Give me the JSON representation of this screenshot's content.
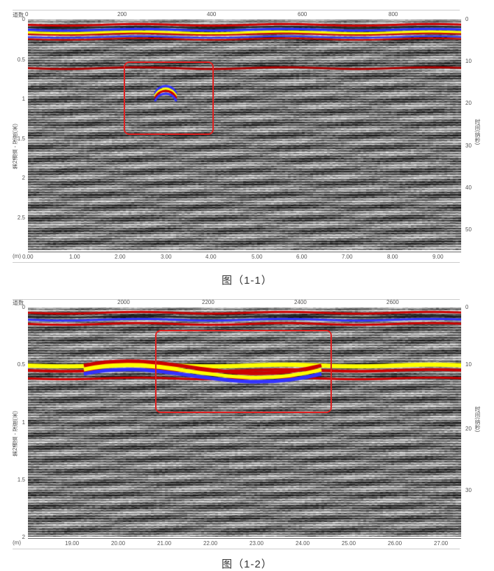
{
  "figures": [
    {
      "trace_label": "道数",
      "depth_label": "第2通道 - 深度(米)",
      "time_label": "时间(纳秒)",
      "unit_label": "(m)",
      "top_ticks": [
        "0",
        "200",
        "400",
        "600",
        "800"
      ],
      "depth_ticks": [
        "0",
        "0.5",
        "1",
        "1.5",
        "2",
        "2.5"
      ],
      "time_ticks": [
        "0",
        "10",
        "20",
        "30",
        "40",
        "50"
      ],
      "distance_ticks": [
        "0.00",
        "1.00",
        "2.00",
        "3.00",
        "4.00",
        "5.00",
        "6.00",
        "7.00",
        "8.00",
        "9.00"
      ],
      "caption": "图（1-1）",
      "highlight_color": "#e02020"
    },
    {
      "trace_label": "道数",
      "depth_label": "第2通道 - 深度(米)",
      "time_label": "时间(纳秒)",
      "unit_label": "(m)",
      "top_ticks": [
        "2000",
        "2200",
        "2400",
        "2600"
      ],
      "depth_ticks": [
        "0",
        "0.5",
        "1",
        "1.5",
        "2"
      ],
      "time_ticks": [
        "0",
        "10",
        "20",
        "30"
      ],
      "distance_ticks": [
        "19.00",
        "20.00",
        "21.00",
        "22.00",
        "23.00",
        "24.00",
        "25.00",
        "26.00",
        "27.00"
      ],
      "caption": "图（1-2）",
      "highlight_color": "#e02020"
    }
  ]
}
